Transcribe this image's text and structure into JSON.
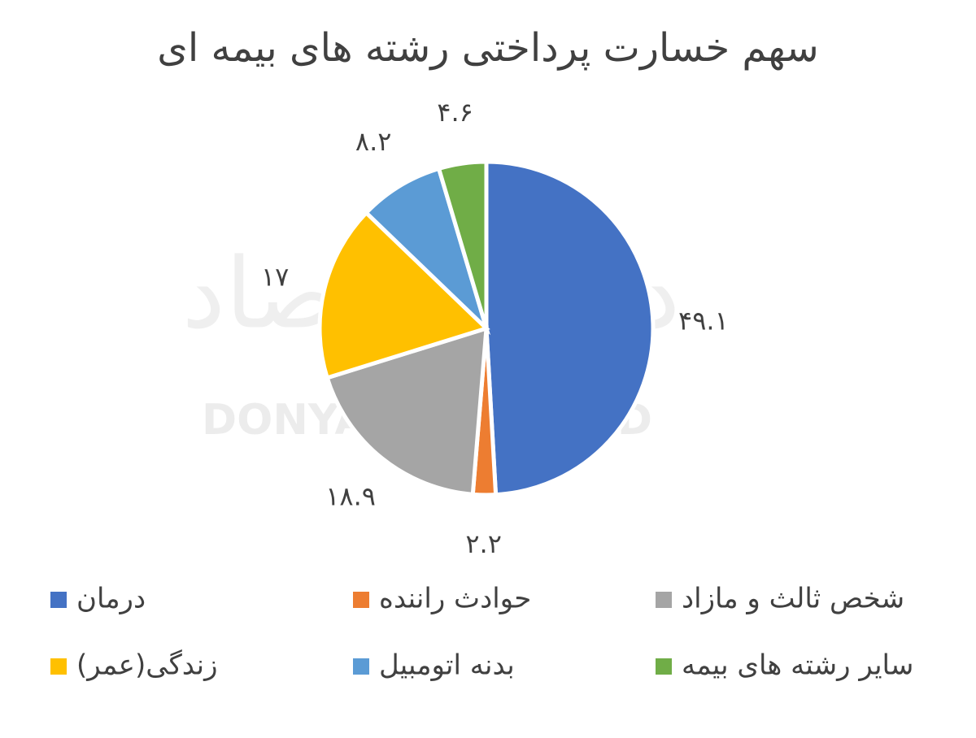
{
  "chart_data": {
    "type": "pie",
    "title": "سهم خسارت پرداختی رشته های بیمه ای",
    "categories": [
      "درمان",
      "حوادث راننده",
      "شخص ثالث و مازاد",
      "زندگی(عمر)",
      "بدنه اتومبیل",
      "سایر رشته های بیمه"
    ],
    "values": [
      49.1,
      2.2,
      18.9,
      17,
      8.2,
      4.6
    ],
    "value_labels": [
      "۴۹.۱",
      "۲.۲",
      "۱۸.۹",
      "۱۷",
      "۸.۲",
      "۴.۶"
    ],
    "colors": [
      "#4472c4",
      "#ed7d31",
      "#a5a5a5",
      "#ffc000",
      "#5b9bd5",
      "#70ad47"
    ],
    "watermark": [
      "دنیای اقتصاد",
      "DONYA-E-EQTESAD"
    ]
  }
}
